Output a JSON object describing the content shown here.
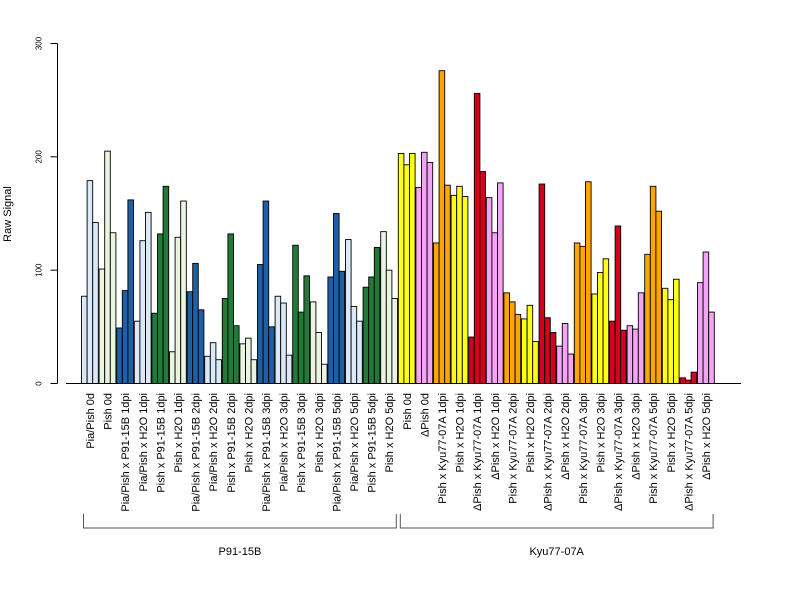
{
  "chart_data": {
    "type": "bar",
    "ylabel": "Raw Signal",
    "ylim": [
      0,
      300
    ],
    "yticks": [
      0,
      100,
      200,
      300
    ],
    "grid": false,
    "categories": [
      "Pia/Pish 0d",
      "Pish 0d",
      "Pia/Pish x P91-15B 1dpi",
      "Pia/Pish x H2O 1dpi",
      "Pish x P91-15B 1dpi",
      "Pish x H2O 1dpi",
      "Pia/Pish x P91-15B 2dpi",
      "Pia/Pish x H2O 2dpi",
      "Pish x P91-15B 2dpi",
      "Pish x H2O 2dpi",
      "Pia/Pish x P91-15B 3dpi",
      "Pia/Pish x H2O 3dpi",
      "Pish x P91-15B 3dpi",
      "Pish x H2O 3dpi",
      "Pia/Pish x P91-15B 5dpi",
      "Pia/Pish x H2O 5dpi",
      "Pish x P91-15B 5dpi",
      "Pish x H2O 5dpi",
      "Pish 0d",
      "ΔPish 0d",
      "Pish x Kyu77-07A 1dpi",
      "Pish x H2O 1dpi",
      "ΔPish x Kyu77-07A 1dpi",
      "ΔPish x H2O 1dpi",
      "Pish x Kyu77-07A 2dpi",
      "Pish x H2O 2dpi",
      "ΔPish x Kyu77-07A 2dpi",
      "ΔPish x H2O 2dpi",
      "Pish x Kyu77-07A 3dpi",
      "Pish x H2O 3dpi",
      "ΔPish x Kyu77-07A 3dpi",
      "ΔPish x H2O 3dpi",
      "Pish x Kyu77-07A 5dpi",
      "Pish x H2O 5dpi",
      "ΔPish x Kyu77-07A 5dpi",
      "ΔPish x H2O 5dpi"
    ],
    "colors": [
      "#dbe8f7",
      "#e9f5e1",
      "#1f5fa8",
      "#dbe8f7",
      "#237a38",
      "#e9f5e1",
      "#1f5fa8",
      "#dbe8f7",
      "#237a38",
      "#e9f5e1",
      "#1f5fa8",
      "#dbe8f7",
      "#237a38",
      "#e9f5e1",
      "#1f5fa8",
      "#dbe8f7",
      "#237a38",
      "#e9f5e1",
      "#ffff1a",
      "#f5a3f5",
      "#ffa500",
      "#ffff1a",
      "#d4001c",
      "#f5a3f5",
      "#ffa500",
      "#ffff1a",
      "#d4001c",
      "#f5a3f5",
      "#ffa500",
      "#ffff1a",
      "#d4001c",
      "#f5a3f5",
      "#ffa500",
      "#ffff1a",
      "#d4001c",
      "#f5a3f5"
    ],
    "values": [
      [
        77,
        179,
        142
      ],
      [
        101,
        205,
        133
      ],
      [
        49,
        82,
        162
      ],
      [
        55,
        126,
        151
      ],
      [
        62,
        132,
        174
      ],
      [
        28,
        129,
        161
      ],
      [
        81,
        106,
        65
      ],
      [
        24,
        36,
        21
      ],
      [
        75,
        132,
        51
      ],
      [
        35,
        40,
        21
      ],
      [
        105,
        161,
        50
      ],
      [
        77,
        71,
        25
      ],
      [
        122,
        63,
        95
      ],
      [
        72,
        45,
        17
      ],
      [
        94,
        150,
        99
      ],
      [
        127,
        68,
        55
      ],
      [
        85,
        94,
        120
      ],
      [
        134,
        100,
        75
      ],
      [
        203,
        193,
        203
      ],
      [
        173,
        204,
        195
      ],
      [
        124,
        276,
        175
      ],
      [
        166,
        174,
        165
      ],
      [
        41,
        256,
        187
      ],
      [
        164,
        133,
        177
      ],
      [
        80,
        72,
        61
      ],
      [
        57,
        69,
        37
      ],
      [
        176,
        58,
        45
      ],
      [
        33,
        53,
        26
      ],
      [
        124,
        121,
        178
      ],
      [
        79,
        98,
        110
      ],
      [
        55,
        139,
        47
      ],
      [
        51,
        48,
        80
      ],
      [
        114,
        174,
        152
      ],
      [
        84,
        74,
        92
      ],
      [
        5,
        3,
        10
      ],
      [
        89,
        116,
        63
      ]
    ],
    "groups": [
      {
        "label": "P91-15B",
        "from": 0,
        "to": 17
      },
      {
        "label": "Kyu77-07A",
        "from": 18,
        "to": 35
      }
    ]
  }
}
